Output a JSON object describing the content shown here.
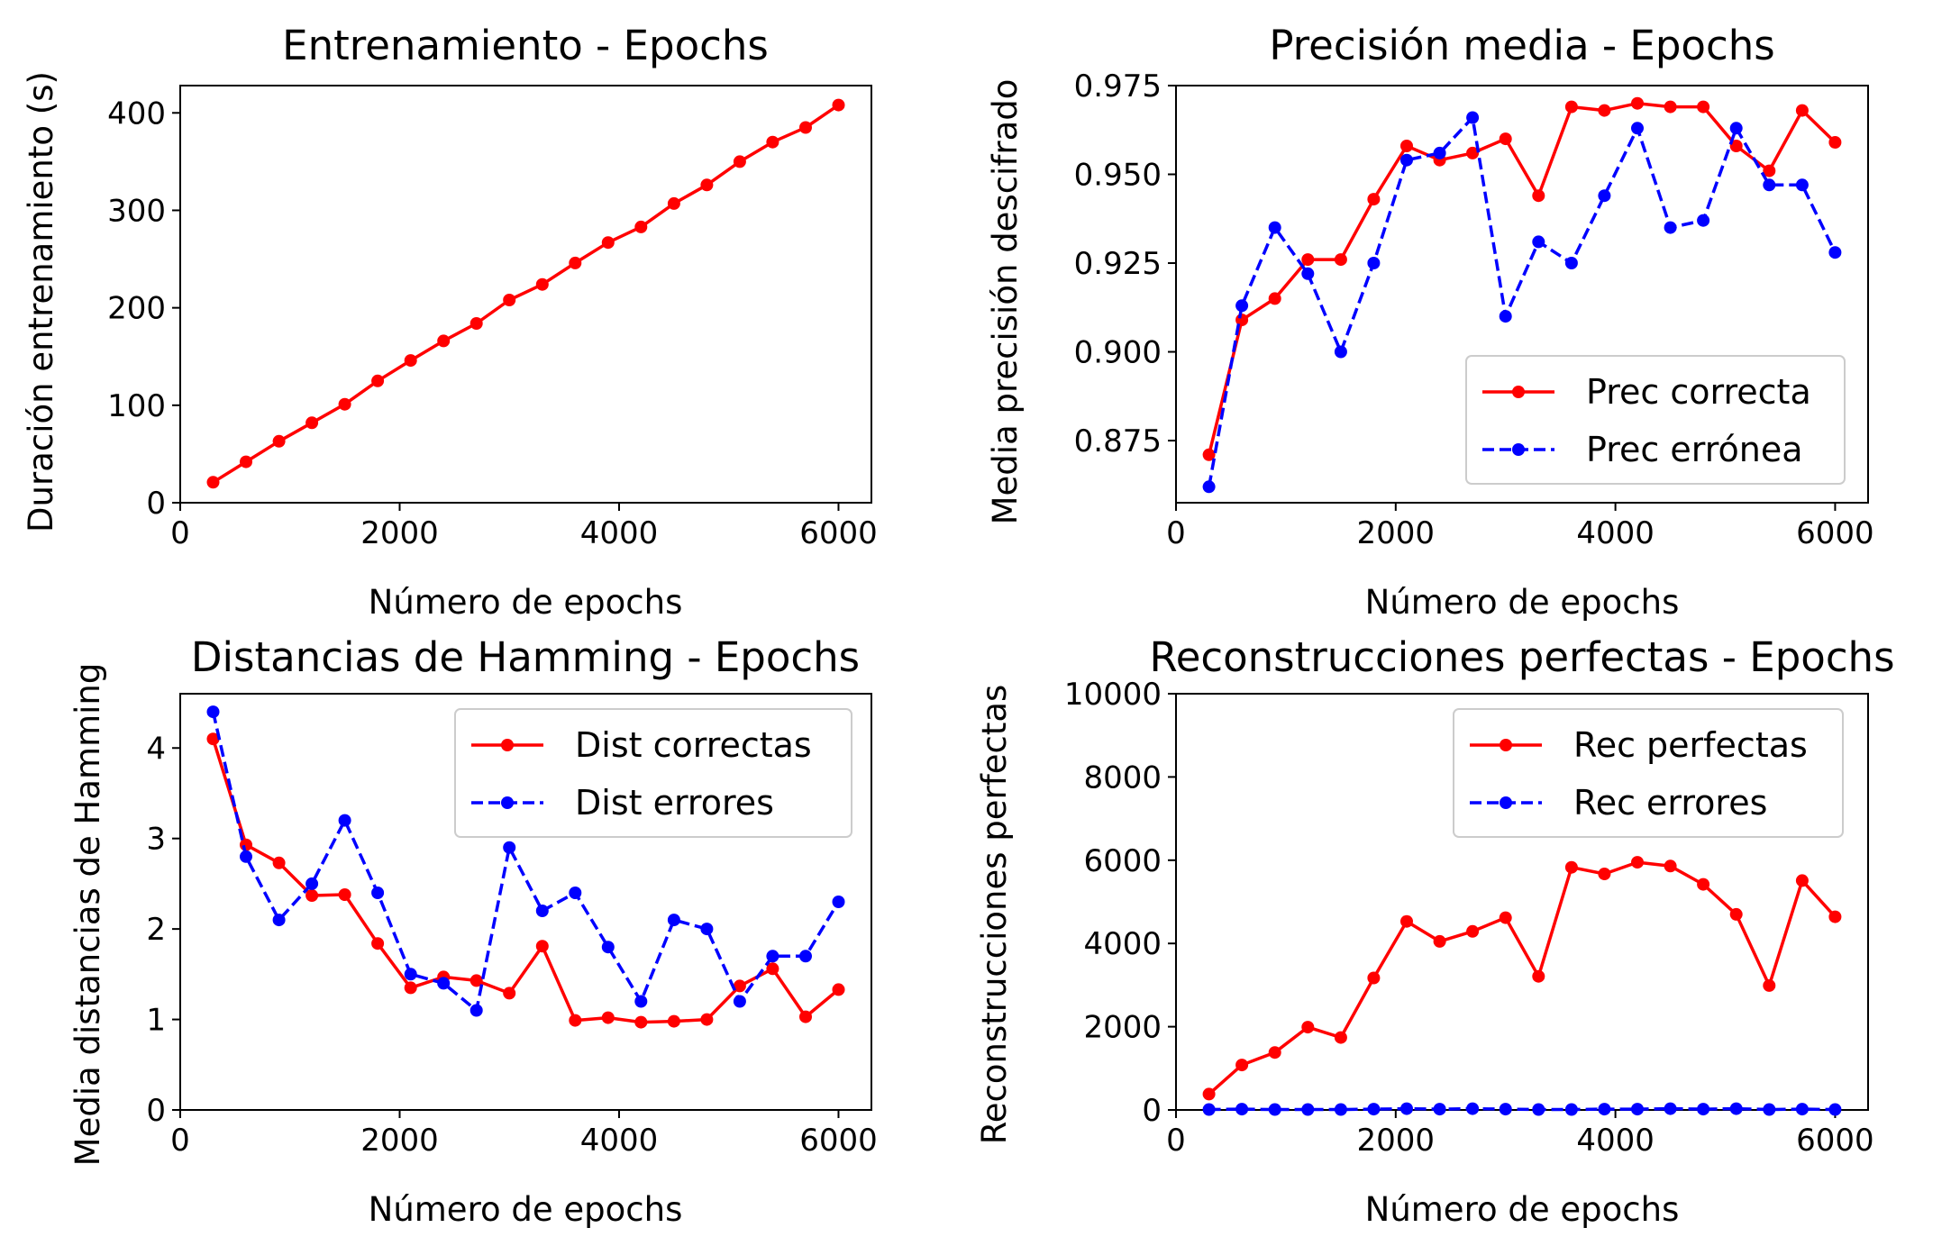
{
  "figure": {
    "background": "#ffffff"
  },
  "colors": {
    "red": "#ff0000",
    "blue": "#0000ff"
  },
  "chart_data": [
    {
      "type": "line",
      "title": "Entrenamiento - Epochs",
      "xlabel": "Número de epochs",
      "ylabel": "Duración entrenamiento (s)",
      "xlim": [
        0,
        6300
      ],
      "ylim": [
        0,
        428
      ],
      "xticks": [
        "0",
        "2000",
        "4000",
        "6000"
      ],
      "yticks": [
        "0",
        "100",
        "200",
        "300",
        "400"
      ],
      "grid": false,
      "legend": null,
      "x": [
        300,
        600,
        900,
        1200,
        1500,
        1800,
        2100,
        2400,
        2700,
        3000,
        3300,
        3600,
        3900,
        4200,
        4500,
        4800,
        5100,
        5400,
        5700,
        6000
      ],
      "series": [
        {
          "color": "#ff0000",
          "style": "solid",
          "values": [
            21,
            42,
            63,
            82,
            101,
            125,
            146,
            166,
            184,
            208,
            224,
            246,
            267,
            283,
            307,
            326,
            350,
            370,
            385,
            408
          ]
        }
      ]
    },
    {
      "type": "line",
      "title": "Precisión media - Epochs",
      "xlabel": "Número de epochs",
      "ylabel": "Media precisión descifrado",
      "xlim": [
        0,
        6300
      ],
      "ylim": [
        0.8575,
        0.975
      ],
      "xticks": [
        "0",
        "2000",
        "4000",
        "6000"
      ],
      "yticks": [
        "0.875",
        "0.900",
        "0.925",
        "0.950",
        "0.975"
      ],
      "grid": false,
      "legend": "lower-right",
      "x": [
        300,
        600,
        900,
        1200,
        1500,
        1800,
        2100,
        2400,
        2700,
        3000,
        3300,
        3600,
        3900,
        4200,
        4500,
        4800,
        5100,
        5400,
        5700,
        6000
      ],
      "series": [
        {
          "name": "Prec correcta",
          "color": "#ff0000",
          "style": "solid",
          "values": [
            0.871,
            0.909,
            0.915,
            0.926,
            0.926,
            0.943,
            0.958,
            0.954,
            0.956,
            0.96,
            0.944,
            0.969,
            0.968,
            0.97,
            0.969,
            0.969,
            0.958,
            0.951,
            0.968,
            0.959
          ]
        },
        {
          "name": "Prec errónea",
          "color": "#0000ff",
          "style": "dashed",
          "values": [
            0.862,
            0.913,
            0.935,
            0.922,
            0.9,
            0.925,
            0.954,
            0.956,
            0.966,
            0.91,
            0.931,
            0.925,
            0.944,
            0.963,
            0.935,
            0.937,
            0.963,
            0.947,
            0.947,
            0.928
          ]
        }
      ]
    },
    {
      "type": "line",
      "title": "Distancias de Hamming - Epochs",
      "xlabel": "Número de epochs",
      "ylabel": "Media distancias de Hamming",
      "xlim": [
        0,
        6300
      ],
      "ylim": [
        0,
        4.6
      ],
      "xticks": [
        "0",
        "2000",
        "4000",
        "6000"
      ],
      "yticks": [
        "0",
        "1",
        "2",
        "3",
        "4"
      ],
      "grid": false,
      "legend": "upper-right",
      "x": [
        300,
        600,
        900,
        1200,
        1500,
        1800,
        2100,
        2400,
        2700,
        3000,
        3300,
        3600,
        3900,
        4200,
        4500,
        4800,
        5100,
        5400,
        5700,
        6000
      ],
      "series": [
        {
          "name": "Dist correctas",
          "color": "#ff0000",
          "style": "solid",
          "values": [
            4.1,
            2.93,
            2.73,
            2.37,
            2.38,
            1.84,
            1.35,
            1.47,
            1.43,
            1.29,
            1.81,
            0.99,
            1.02,
            0.97,
            0.98,
            1.0,
            1.37,
            1.56,
            1.03,
            1.33
          ]
        },
        {
          "name": "Dist errores",
          "color": "#0000ff",
          "style": "dashed",
          "values": [
            4.4,
            2.8,
            2.1,
            2.5,
            3.2,
            2.4,
            1.5,
            1.4,
            1.1,
            2.9,
            2.2,
            2.4,
            1.8,
            1.2,
            2.1,
            2.0,
            1.2,
            1.7,
            1.7,
            2.3
          ]
        }
      ]
    },
    {
      "type": "line",
      "title": "Reconstrucciones perfectas - Epochs",
      "xlabel": "Número de epochs",
      "ylabel": "Reconstrucciones perfectas",
      "xlim": [
        0,
        6300
      ],
      "ylim": [
        0,
        10000
      ],
      "xticks": [
        "0",
        "2000",
        "4000",
        "6000"
      ],
      "yticks": [
        "0",
        "2000",
        "4000",
        "6000",
        "8000",
        "10000"
      ],
      "grid": false,
      "legend": "upper-right",
      "x": [
        300,
        600,
        900,
        1200,
        1500,
        1800,
        2100,
        2400,
        2700,
        3000,
        3300,
        3600,
        3900,
        4200,
        4500,
        4800,
        5100,
        5400,
        5700,
        6000
      ],
      "series": [
        {
          "name": "Rec perfectas",
          "color": "#ff0000",
          "style": "solid",
          "values": [
            380,
            1080,
            1380,
            1990,
            1740,
            3170,
            4530,
            4050,
            4290,
            4620,
            3210,
            5830,
            5670,
            5950,
            5860,
            5420,
            4700,
            2990,
            5510,
            4640
          ]
        },
        {
          "name": "Rec errores",
          "color": "#0000ff",
          "style": "dashed",
          "values": [
            10,
            20,
            10,
            10,
            10,
            20,
            30,
            20,
            30,
            20,
            10,
            10,
            20,
            20,
            30,
            20,
            30,
            10,
            20,
            10
          ]
        }
      ]
    }
  ]
}
